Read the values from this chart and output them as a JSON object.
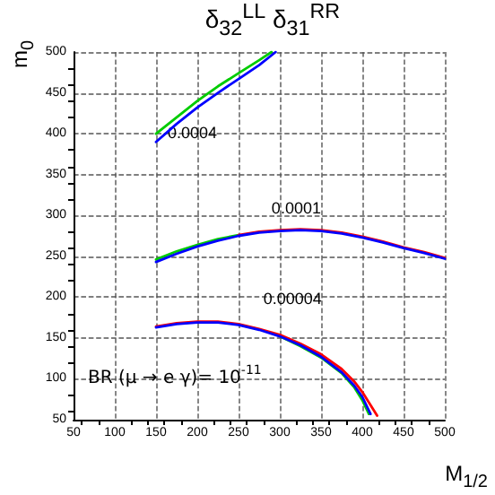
{
  "chart_data": {
    "type": "line",
    "title": "δ$_{32}$$^{LL}$ δ$_{31}$$^{RR}$",
    "xlabel": "M$_{1/2}$",
    "ylabel": "m$_{0}$",
    "xlim": [
      50,
      500
    ],
    "ylim": [
      50,
      500
    ],
    "xticks": [
      50,
      100,
      150,
      200,
      250,
      300,
      350,
      400,
      450,
      500
    ],
    "yticks": [
      50,
      100,
      150,
      200,
      250,
      300,
      350,
      400,
      450,
      500
    ],
    "grid": true,
    "line_style": "solid",
    "marker": "none",
    "series": [
      {
        "color": "#00cc00",
        "x": [
          150,
          175,
          200,
          225,
          250,
          275,
          290
        ],
        "values": [
          400,
          420,
          440,
          458,
          474,
          490,
          500
        ]
      },
      {
        "color": "#0000ff",
        "x": [
          150,
          175,
          200,
          225,
          250,
          275,
          295
        ],
        "values": [
          390,
          412,
          432,
          450,
          467,
          484,
          500
        ]
      },
      {
        "color": "#00cc00",
        "x": [
          150,
          175,
          200,
          225,
          250
        ],
        "values": [
          246,
          256,
          264,
          271,
          276
        ]
      },
      {
        "color": "#ff0000",
        "x": [
          250,
          275,
          300,
          325,
          350,
          375,
          400,
          425,
          450,
          475,
          500
        ],
        "values": [
          276,
          280,
          282,
          283,
          282,
          279,
          274,
          268,
          261,
          255,
          248
        ]
      },
      {
        "color": "#0000ff",
        "x": [
          150,
          175,
          200,
          225,
          250,
          275,
          300,
          325,
          350,
          375,
          400,
          425,
          450,
          475,
          500
        ],
        "values": [
          243,
          253,
          262,
          269,
          275,
          279,
          281,
          282,
          281,
          278,
          273,
          267,
          260,
          254,
          247
        ]
      },
      {
        "color": "#00cc00",
        "x": [
          300,
          325,
          350,
          375,
          390,
          400,
          408
        ],
        "values": [
          152,
          140,
          126,
          107,
          90,
          74,
          57
        ]
      },
      {
        "color": "#ff0000",
        "x": [
          150,
          175,
          200,
          225,
          250,
          275,
          300,
          325,
          350,
          375,
          390,
          400,
          418
        ],
        "values": [
          164,
          168,
          170,
          170,
          167,
          161,
          154,
          143,
          130,
          112,
          97,
          84,
          55
        ]
      },
      {
        "color": "#0000ff",
        "x": [
          150,
          175,
          200,
          225,
          250,
          275,
          300,
          325,
          350,
          375,
          390,
          400,
          410
        ],
        "values": [
          163,
          167,
          169,
          169,
          166,
          160,
          152,
          141,
          127,
          108,
          92,
          78,
          57
        ]
      }
    ],
    "annotations": [
      "0.0004",
      "0.0001",
      "0.00004",
      "BR (μ → e γ)= 10$^{-11}$"
    ]
  }
}
